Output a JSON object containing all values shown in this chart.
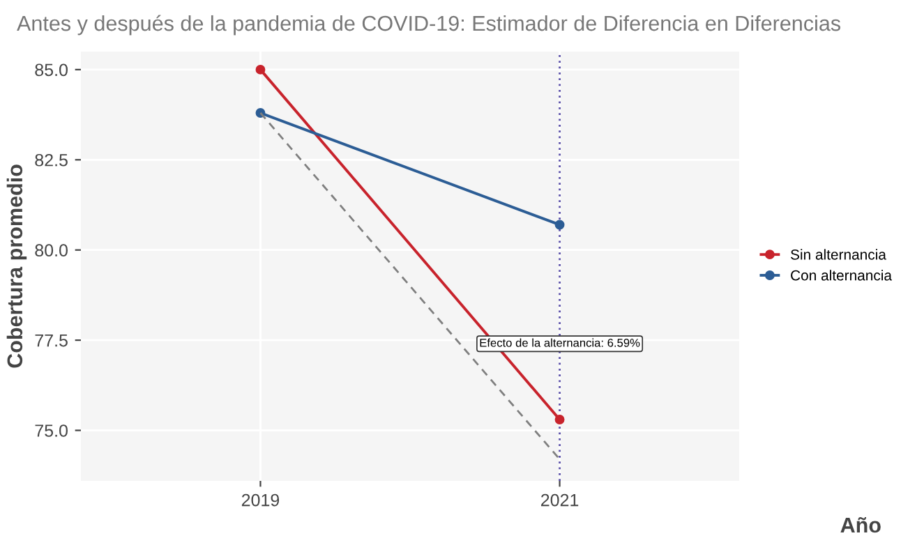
{
  "chart_data": {
    "type": "line",
    "title": "Antes y después de la pandemia de COVID-19: Estimador de Diferencia en Diferencias",
    "xlabel": "Año",
    "ylabel": "Cobertura promedio",
    "categories": [
      "2019",
      "2021"
    ],
    "series": [
      {
        "name": "Sin alternancia",
        "color": "#c8232c",
        "values": [
          85.0,
          75.3
        ],
        "marker": "circle"
      },
      {
        "name": "Con alternancia",
        "color": "#2c5d95",
        "values": [
          83.8,
          80.7
        ],
        "marker": "circle"
      },
      {
        "color": "#7f7f7f",
        "values": [
          83.8,
          74.2
        ],
        "line_style": "dashed",
        "marker": "none"
      }
    ],
    "ref_lines": [
      {
        "axis": "x",
        "value": "2021",
        "color": "#5a4fa8",
        "line_style": "dotted"
      }
    ],
    "annotations": [
      {
        "text": "Efecto de la alternancia: 6.59%",
        "x": "2021",
        "y": 77.4
      }
    ],
    "ylim": [
      73.6,
      85.5
    ],
    "yticks": [
      {
        "value": 75,
        "label": "75.0"
      },
      {
        "value": 77.5,
        "label": "77.5"
      },
      {
        "value": 80,
        "label": "80.0"
      },
      {
        "value": 82.5,
        "label": "82.5"
      },
      {
        "value": 85,
        "label": "85.0"
      }
    ],
    "grid": true,
    "legend": "right"
  }
}
